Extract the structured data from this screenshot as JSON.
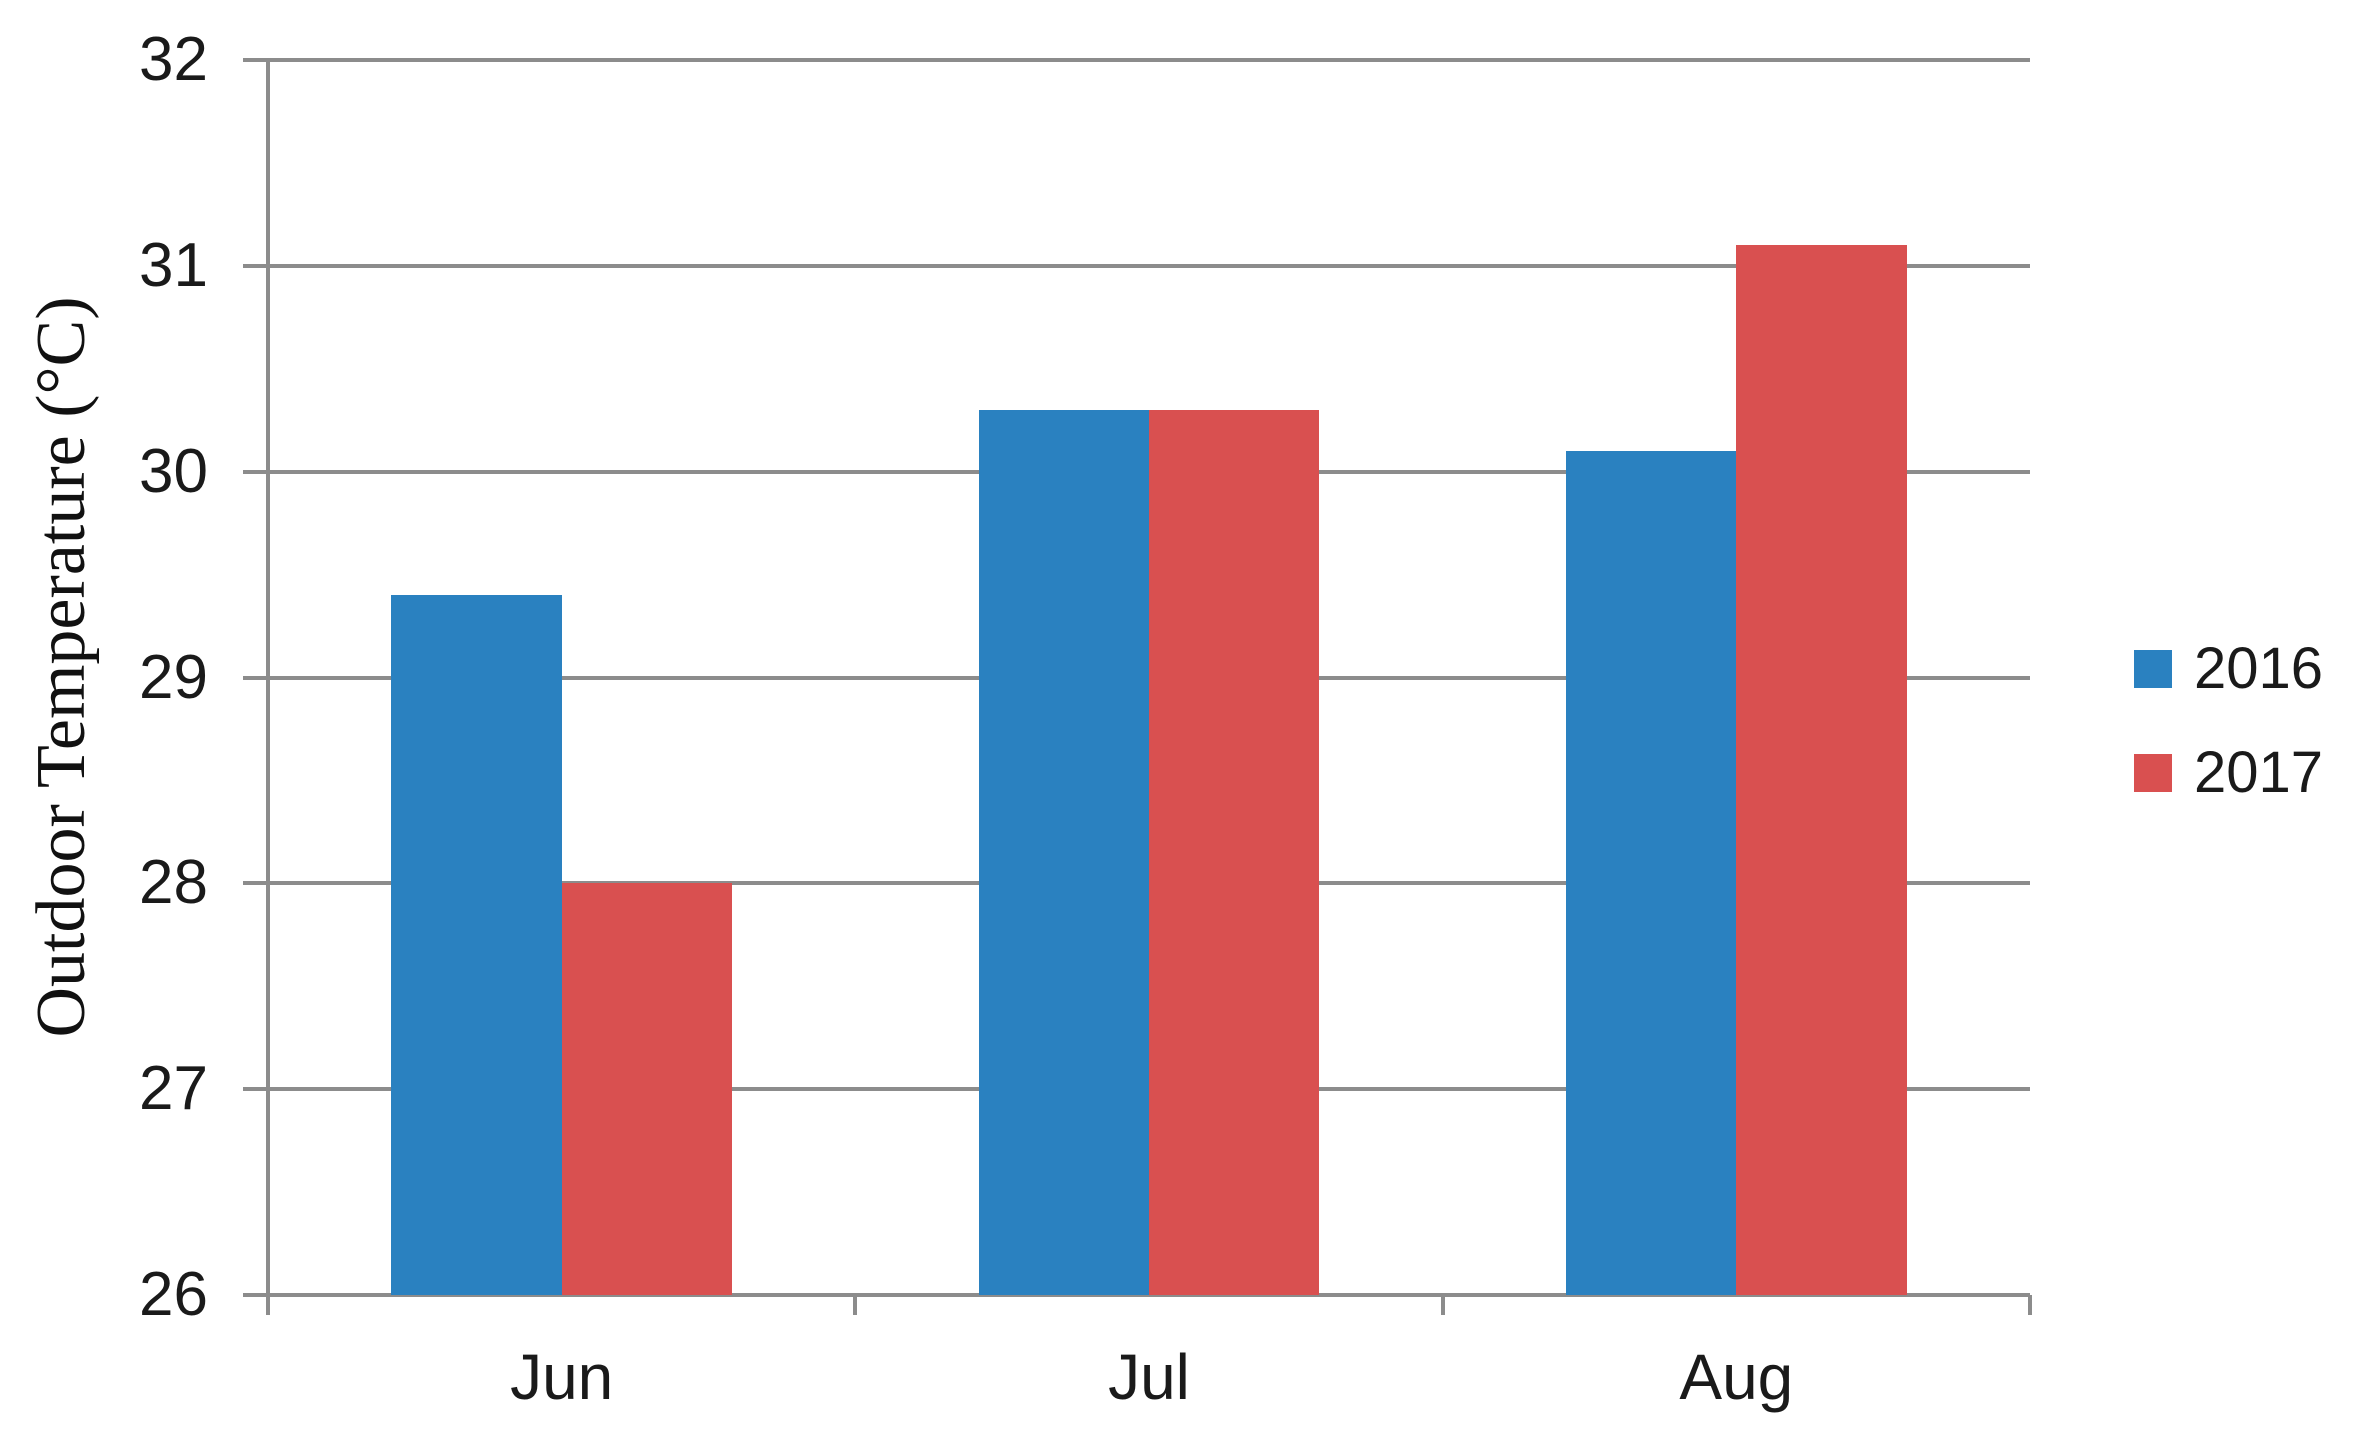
{
  "chart_data": {
    "type": "bar",
    "categories": [
      "Jun",
      "Jul",
      "Aug"
    ],
    "series": [
      {
        "name": "2016",
        "color": "#2a81c0",
        "values": [
          29.4,
          30.3,
          30.1
        ]
      },
      {
        "name": "2017",
        "color": "#d95050",
        "values": [
          28.0,
          30.3,
          31.1
        ]
      }
    ],
    "title": "",
    "xlabel": "",
    "ylabel": "Outdoor Temperature (°C)",
    "ylim": [
      26,
      32
    ],
    "yticks": [
      26,
      27,
      28,
      29,
      30,
      31,
      32
    ],
    "grid": true,
    "legend_position": "right",
    "axis_color": "#8c8c8c",
    "text_color": "#1a1a1a"
  }
}
